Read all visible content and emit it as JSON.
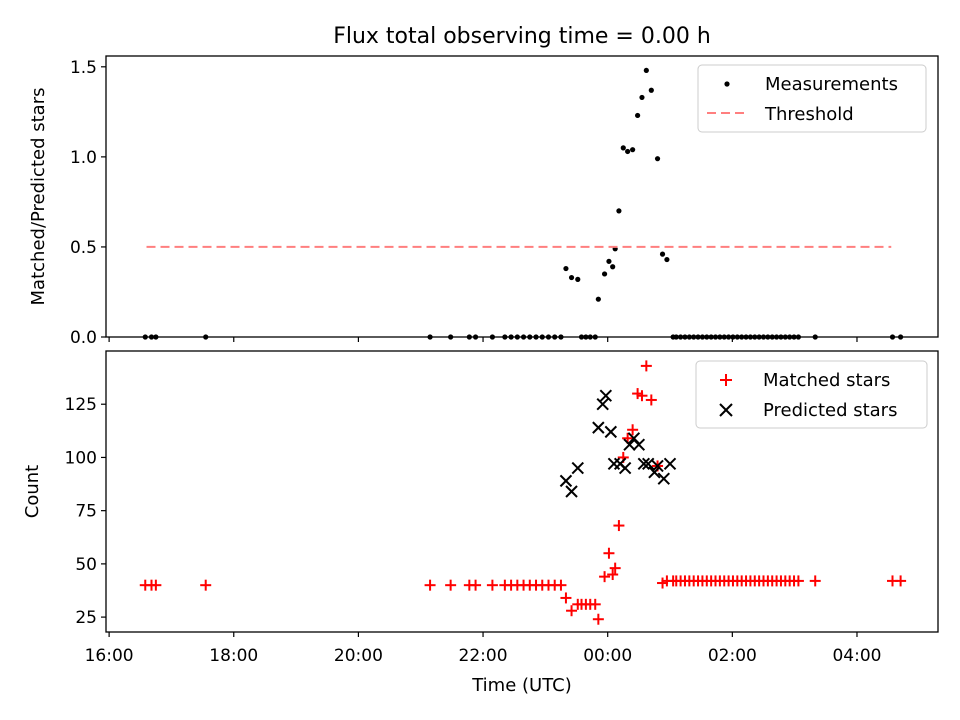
{
  "chart_data": [
    {
      "type": "scatter",
      "title": "Flux total observing time = 0.00 h",
      "ylabel": "Matched/Predicted stars",
      "xlabel": "",
      "xlim": [
        15.95,
        29.3
      ],
      "ylim": [
        0,
        1.56
      ],
      "yticks": [
        0,
        0.5,
        1.0,
        1.5
      ],
      "ytick_labels": [
        "0.0",
        "0.5",
        "1.0",
        "1.5"
      ],
      "xticks": [
        16,
        18,
        20,
        22,
        24,
        26,
        28
      ],
      "legend": {
        "position": "top-right",
        "entries": [
          "Measurements",
          "Threshold"
        ]
      },
      "series": [
        {
          "name": "Measurements",
          "marker": "dot",
          "color": "#000000",
          "x": [
            16.58,
            16.68,
            16.75,
            17.55,
            21.15,
            21.48,
            21.78,
            21.88,
            22.15,
            22.35,
            22.45,
            22.55,
            22.65,
            22.75,
            22.85,
            22.95,
            23.05,
            23.15,
            23.25,
            23.33,
            23.42,
            23.52,
            23.58,
            23.65,
            23.72,
            23.8,
            23.85,
            23.95,
            24.02,
            24.08,
            24.12,
            24.18,
            24.25,
            24.32,
            24.4,
            24.48,
            24.55,
            24.62,
            24.7,
            24.8,
            24.88,
            24.95,
            25.05,
            25.1,
            25.17,
            25.24,
            25.31,
            25.38,
            25.45,
            25.52,
            25.59,
            25.66,
            25.73,
            25.8,
            25.87,
            25.94,
            26.01,
            26.08,
            26.15,
            26.22,
            26.29,
            26.36,
            26.43,
            26.5,
            26.57,
            26.64,
            26.71,
            26.78,
            26.85,
            26.92,
            26.99,
            27.06,
            27.33,
            28.57,
            28.7
          ],
          "y": [
            0,
            0,
            0,
            0,
            0,
            0,
            0,
            0,
            0,
            0,
            0,
            0,
            0,
            0,
            0,
            0,
            0,
            0,
            0,
            0.38,
            0.33,
            0.32,
            0,
            0,
            0,
            0,
            0.21,
            0.35,
            0.42,
            0.39,
            0.49,
            0.7,
            1.05,
            1.03,
            1.04,
            1.23,
            1.33,
            1.48,
            1.37,
            0.99,
            0.46,
            0.43,
            0,
            0,
            0,
            0,
            0,
            0,
            0,
            0,
            0,
            0,
            0,
            0,
            0,
            0,
            0,
            0,
            0,
            0,
            0,
            0,
            0,
            0,
            0,
            0,
            0,
            0,
            0,
            0,
            0,
            0,
            0,
            0,
            0
          ]
        },
        {
          "name": "Threshold",
          "style": "dashed",
          "color": "#ff7f7f",
          "x": [
            16.6,
            28.55
          ],
          "y": [
            0.5,
            0.5
          ]
        }
      ]
    },
    {
      "type": "scatter",
      "title": "",
      "ylabel": "Count",
      "xlabel": "Time (UTC)",
      "xlim": [
        15.95,
        29.3
      ],
      "ylim": [
        18,
        150
      ],
      "yticks": [
        25,
        50,
        75,
        100,
        125
      ],
      "ytick_labels": [
        "25",
        "50",
        "75",
        "100",
        "125"
      ],
      "xticks": [
        16,
        18,
        20,
        22,
        24,
        26,
        28
      ],
      "xtick_labels": [
        "16:00",
        "18:00",
        "20:00",
        "22:00",
        "00:00",
        "02:00",
        "04:00"
      ],
      "legend": {
        "position": "top-right",
        "entries": [
          "Matched stars",
          "Predicted stars"
        ]
      },
      "series": [
        {
          "name": "Matched stars",
          "marker": "plus",
          "color": "#ff0000",
          "x": [
            16.58,
            16.68,
            16.75,
            17.55,
            21.15,
            21.48,
            21.78,
            21.88,
            22.15,
            22.35,
            22.45,
            22.55,
            22.65,
            22.75,
            22.85,
            22.95,
            23.05,
            23.15,
            23.25,
            23.33,
            23.42,
            23.52,
            23.58,
            23.65,
            23.72,
            23.8,
            23.85,
            23.95,
            24.02,
            24.08,
            24.12,
            24.18,
            24.25,
            24.32,
            24.4,
            24.48,
            24.55,
            24.62,
            24.7,
            24.8,
            24.88,
            24.95,
            25.05,
            25.1,
            25.17,
            25.24,
            25.31,
            25.38,
            25.45,
            25.52,
            25.59,
            25.66,
            25.73,
            25.8,
            25.87,
            25.94,
            26.01,
            26.08,
            26.15,
            26.22,
            26.29,
            26.36,
            26.43,
            26.5,
            26.57,
            26.64,
            26.71,
            26.78,
            26.85,
            26.92,
            26.99,
            27.06,
            27.33,
            28.57,
            28.7
          ],
          "y": [
            40,
            40,
            40,
            40,
            40,
            40,
            40,
            40,
            40,
            40,
            40,
            40,
            40,
            40,
            40,
            40,
            40,
            40,
            40,
            34,
            28,
            31,
            31,
            31,
            31,
            31,
            24,
            44,
            55,
            45,
            48,
            68,
            100,
            109,
            113,
            130,
            129,
            143,
            127,
            96,
            41,
            42,
            42,
            42,
            42,
            42,
            42,
            42,
            42,
            42,
            42,
            42,
            42,
            42,
            42,
            42,
            42,
            42,
            42,
            42,
            42,
            42,
            42,
            42,
            42,
            42,
            42,
            42,
            42,
            42,
            42,
            42,
            42,
            42,
            42
          ]
        },
        {
          "name": "Predicted stars",
          "marker": "x",
          "color": "#000000",
          "x": [
            23.33,
            23.42,
            23.52,
            23.85,
            23.92,
            23.97,
            24.05,
            24.1,
            24.2,
            24.28,
            24.35,
            24.42,
            24.5,
            24.58,
            24.65,
            24.75,
            24.8,
            24.9,
            25.0
          ],
          "y": [
            89,
            84,
            95,
            114,
            125,
            129,
            112,
            97,
            97,
            95,
            106,
            109,
            106,
            97,
            97,
            93,
            96,
            90,
            97
          ]
        }
      ]
    }
  ]
}
